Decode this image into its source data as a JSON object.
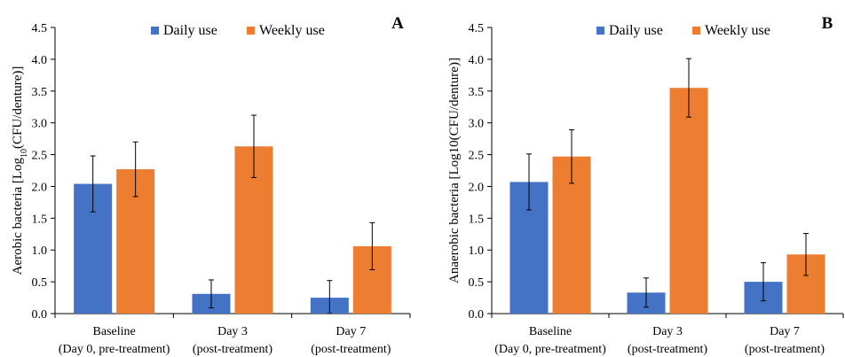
{
  "colors": {
    "daily": "#4472C4",
    "weekly": "#ED7D31",
    "axis": "#000000"
  },
  "legend": {
    "daily_label": "Daily use",
    "weekly_label": "Weekly use"
  },
  "chart_data": [
    {
      "type": "bar",
      "panel_label": "A",
      "ylabel_main": "Aerobic bacteria [Log",
      "ylabel_sub": "10",
      "ylabel_end": "(CFU/denture)]",
      "ylim": [
        0,
        4.5
      ],
      "yticks": [
        "0.0",
        "0.5",
        "1.0",
        "1.5",
        "2.0",
        "2.5",
        "3.0",
        "3.5",
        "4.0",
        "4.5"
      ],
      "categories": [
        {
          "line1": "Baseline",
          "line2": "(Day 0, pre-treatment)"
        },
        {
          "line1": "Day 3",
          "line2": "(post-treatment)"
        },
        {
          "line1": "Day 7",
          "line2": "(post-treatment)"
        }
      ],
      "series": [
        {
          "name": "Daily use",
          "values": [
            2.04,
            0.31,
            0.25
          ],
          "errors": [
            0.44,
            0.22,
            0.27
          ]
        },
        {
          "name": "Weekly use",
          "values": [
            2.27,
            2.63,
            1.06
          ],
          "errors": [
            0.43,
            0.49,
            0.37
          ]
        }
      ],
      "legend_position": "top",
      "grid": false
    },
    {
      "type": "bar",
      "panel_label": "B",
      "ylabel_main": "Anaerobic bacteria [Log10(CFU/denture)]",
      "ylabel_sub": "",
      "ylabel_end": "",
      "ylim": [
        0,
        4.5
      ],
      "yticks": [
        "0.0",
        "0.5",
        "1.0",
        "1.5",
        "2.0",
        "2.5",
        "3.0",
        "3.5",
        "4.0",
        "4.5"
      ],
      "categories": [
        {
          "line1": "Baseline",
          "line2": "(Day 0, pre-treatment)"
        },
        {
          "line1": "Day 3",
          "line2": "(post-treatment)"
        },
        {
          "line1": "Day 7",
          "line2": "(post-treatment)"
        }
      ],
      "series": [
        {
          "name": "Daily use",
          "values": [
            2.07,
            0.33,
            0.5
          ],
          "errors": [
            0.44,
            0.23,
            0.3
          ]
        },
        {
          "name": "Weekly use",
          "values": [
            2.47,
            3.55,
            0.93
          ],
          "errors": [
            0.42,
            0.46,
            0.33
          ]
        }
      ],
      "legend_position": "top",
      "grid": false
    }
  ]
}
